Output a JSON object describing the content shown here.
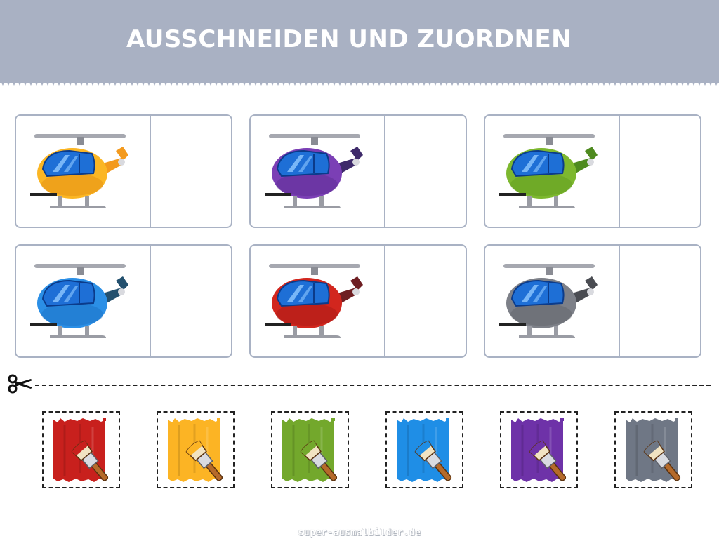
{
  "header": {
    "title": "AUSSCHNEIDEN UND ZUORDNEN",
    "background": "#a9b1c3"
  },
  "match_boxes": [
    {
      "helicopter_color": "orange",
      "body": "#fbb624",
      "tail": "#f39a1e",
      "shade": "#e08a12"
    },
    {
      "helicopter_color": "purple",
      "body": "#7b3fb5",
      "tail": "#3e2a6a",
      "shade": "#5c2c91"
    },
    {
      "helicopter_color": "green",
      "body": "#7db82f",
      "tail": "#4e8a1f",
      "shade": "#5f9a1f"
    },
    {
      "helicopter_color": "blue",
      "body": "#2b8fe6",
      "tail": "#23506e",
      "shade": "#1a6fc0"
    },
    {
      "helicopter_color": "red",
      "body": "#d2261e",
      "tail": "#6e1e22",
      "shade": "#a51a16"
    },
    {
      "helicopter_color": "grey",
      "body": "#7d8088",
      "tail": "#4a4c52",
      "shade": "#5f6269"
    }
  ],
  "cut_line": {
    "icon": "scissors-icon"
  },
  "swatches": [
    {
      "color_name": "red",
      "color": "#c8201d"
    },
    {
      "color_name": "yellow",
      "color": "#fcb424"
    },
    {
      "color_name": "green",
      "color": "#73a82c"
    },
    {
      "color_name": "blue",
      "color": "#1f8ee6"
    },
    {
      "color_name": "purple",
      "color": "#6e32a8"
    },
    {
      "color_name": "grey",
      "color": "#6f7785"
    }
  ],
  "footer": {
    "watermark": "super-ausmalbilder.de"
  }
}
